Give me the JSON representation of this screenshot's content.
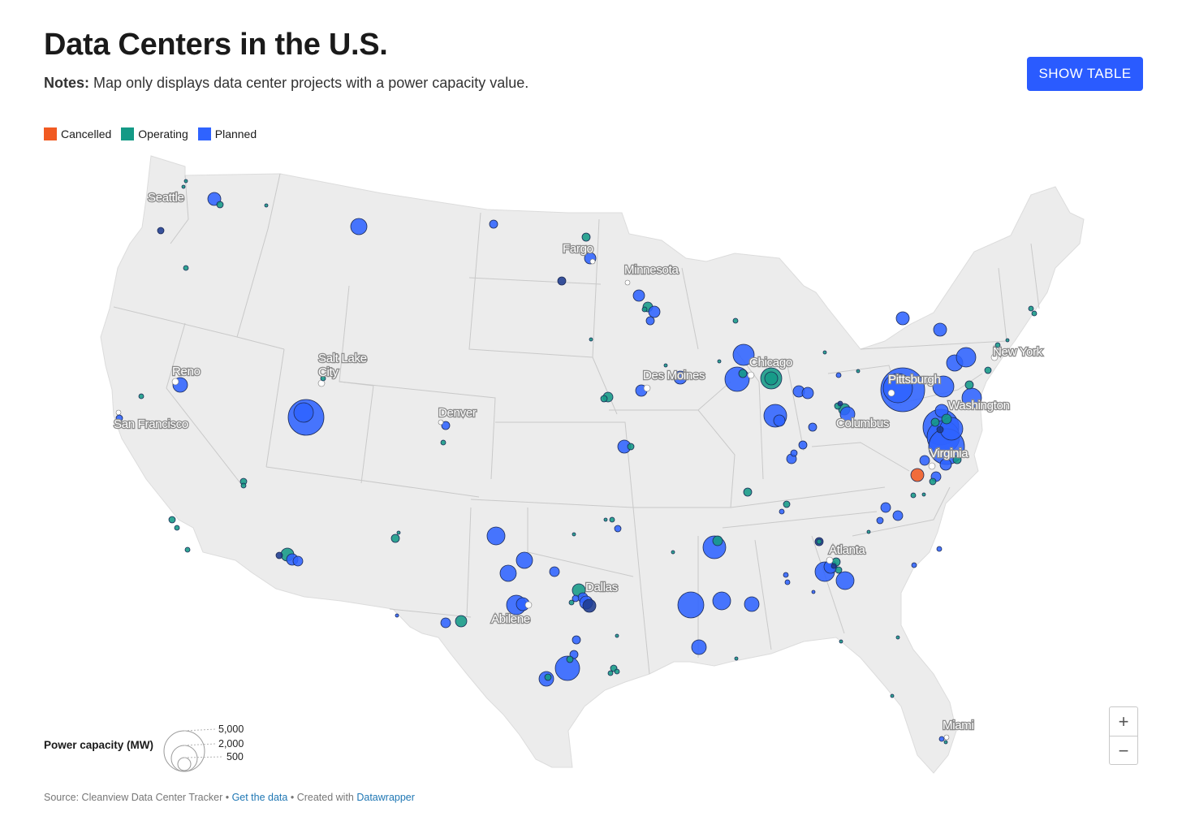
{
  "title": "Data Centers in the U.S.",
  "notes": {
    "prefix": "Notes:",
    "text": " Map only displays data center projects with a power capacity value."
  },
  "show_table_label": "SHOW TABLE",
  "legend": [
    {
      "label": "Cancelled",
      "color": "#f15a22"
    },
    {
      "label": "Operating",
      "color": "#149a86"
    },
    {
      "label": "Planned",
      "color": "#2f63ff"
    }
  ],
  "status_colors": {
    "cancelled": "#f15a22",
    "operating": "#149a86",
    "planned": "#2f63ff"
  },
  "cities": [
    "Seattle",
    "Fargo",
    "Minnesota",
    "Reno",
    "Salt Lake",
    "City",
    "San Francisco",
    "Denver",
    "Des Moines",
    "Chicago",
    "Pittsburgh",
    "New York",
    "Washington",
    "Columbus",
    "Virginia",
    "Atlanta",
    "Dallas",
    "Abilene",
    "Miami"
  ],
  "size_legend": {
    "title": "Power capacity (MW)",
    "values": [
      "5,000",
      "2,000",
      "500"
    ]
  },
  "zoom": {
    "in": "+",
    "out": "−"
  },
  "footer": {
    "source": "Source: Cleanview Data Center Tracker",
    "sep": " • ",
    "get_data": "Get the data",
    "created": "Created with ",
    "tool": "Datawrapper"
  }
}
